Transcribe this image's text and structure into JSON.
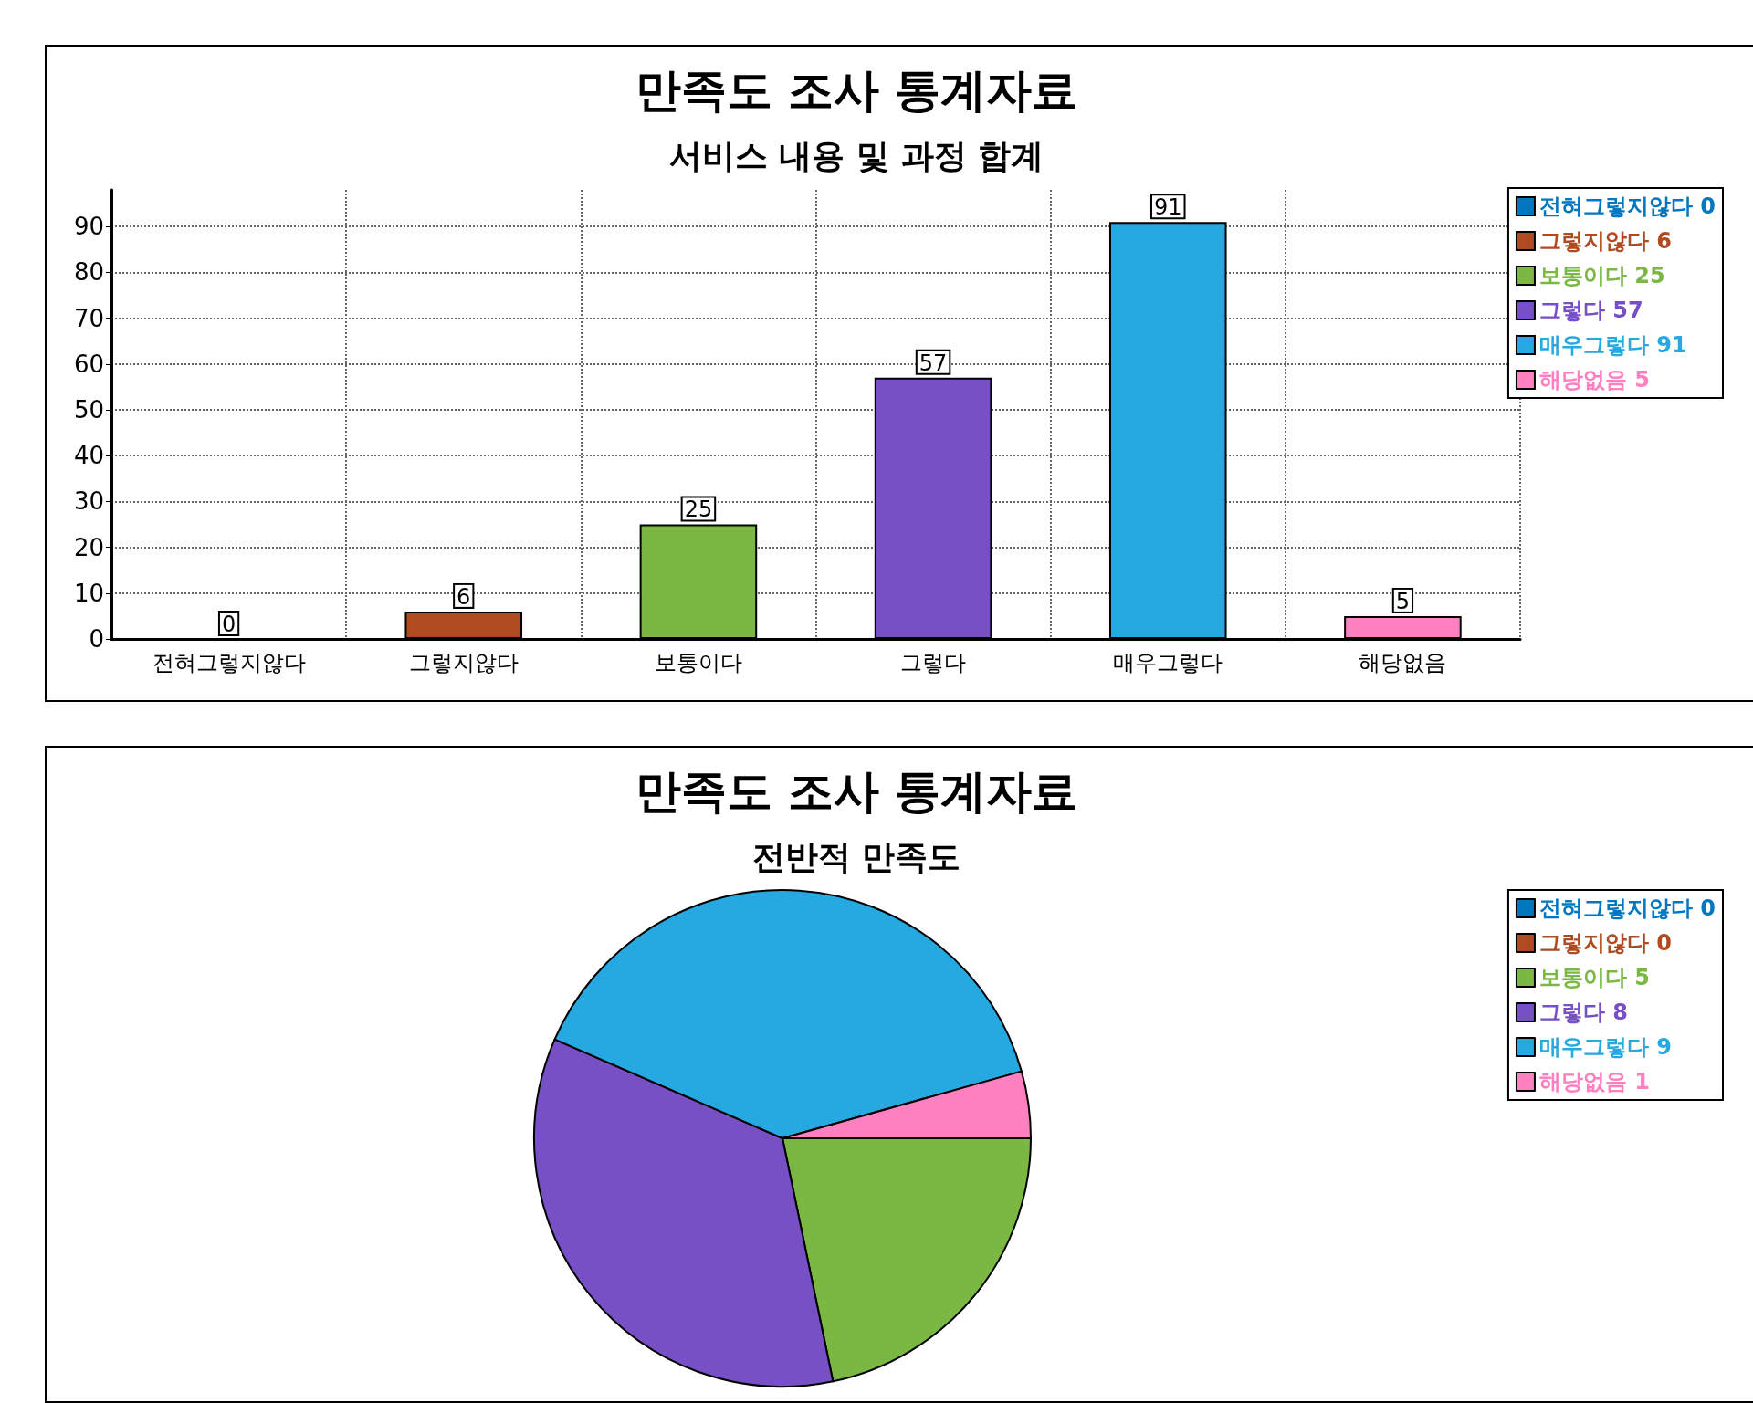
{
  "chart_data": [
    {
      "type": "bar",
      "title": "만족도 조사 통계자료",
      "subtitle": "서비스 내용 및 과정 합계",
      "categories": [
        "전혀그렇지않다",
        "그렇지않다",
        "보통이다",
        "그렇다",
        "매우그렇다",
        "해당없음"
      ],
      "series": [
        {
          "name": "전혀그렇지않다 0",
          "color": "#0077c0",
          "values": [
            0,
            null,
            null,
            null,
            null,
            null
          ]
        },
        {
          "name": "그렇지않다 6",
          "color": "#b04a20",
          "values": [
            null,
            6,
            null,
            null,
            null,
            null
          ]
        },
        {
          "name": "보통이다 25",
          "color": "#7ab743",
          "values": [
            null,
            null,
            25,
            null,
            null,
            null
          ]
        },
        {
          "name": "그렇다 57",
          "color": "#7650c4",
          "values": [
            null,
            null,
            null,
            57,
            null,
            null
          ]
        },
        {
          "name": "매우그렇다 91",
          "color": "#26a8e0",
          "values": [
            null,
            null,
            null,
            null,
            91,
            null
          ]
        },
        {
          "name": "해당없음 5",
          "color": "#ff80c0",
          "values": [
            null,
            null,
            null,
            null,
            null,
            5
          ]
        }
      ],
      "ylim": [
        0,
        98
      ],
      "yticks": [
        0,
        10,
        20,
        30,
        40,
        50,
        60,
        70,
        80,
        90
      ],
      "grid": true,
      "legend": "top right",
      "data_labels": true
    },
    {
      "type": "pie",
      "title": "만족도 조사 통계자료",
      "subtitle": "전반적 만족도",
      "categories": [
        "전혀그렇지않다 0",
        "그렇지않다 0",
        "보통이다 5",
        "그렇다 8",
        "매우그렇다 9",
        "해당없음 1"
      ],
      "values": [
        0,
        0,
        5,
        8,
        9,
        1
      ],
      "colors": [
        "#0077c0",
        "#b04a20",
        "#7ab743",
        "#7650c4",
        "#26a8e0",
        "#ff80c0"
      ],
      "legend": "top right"
    }
  ]
}
